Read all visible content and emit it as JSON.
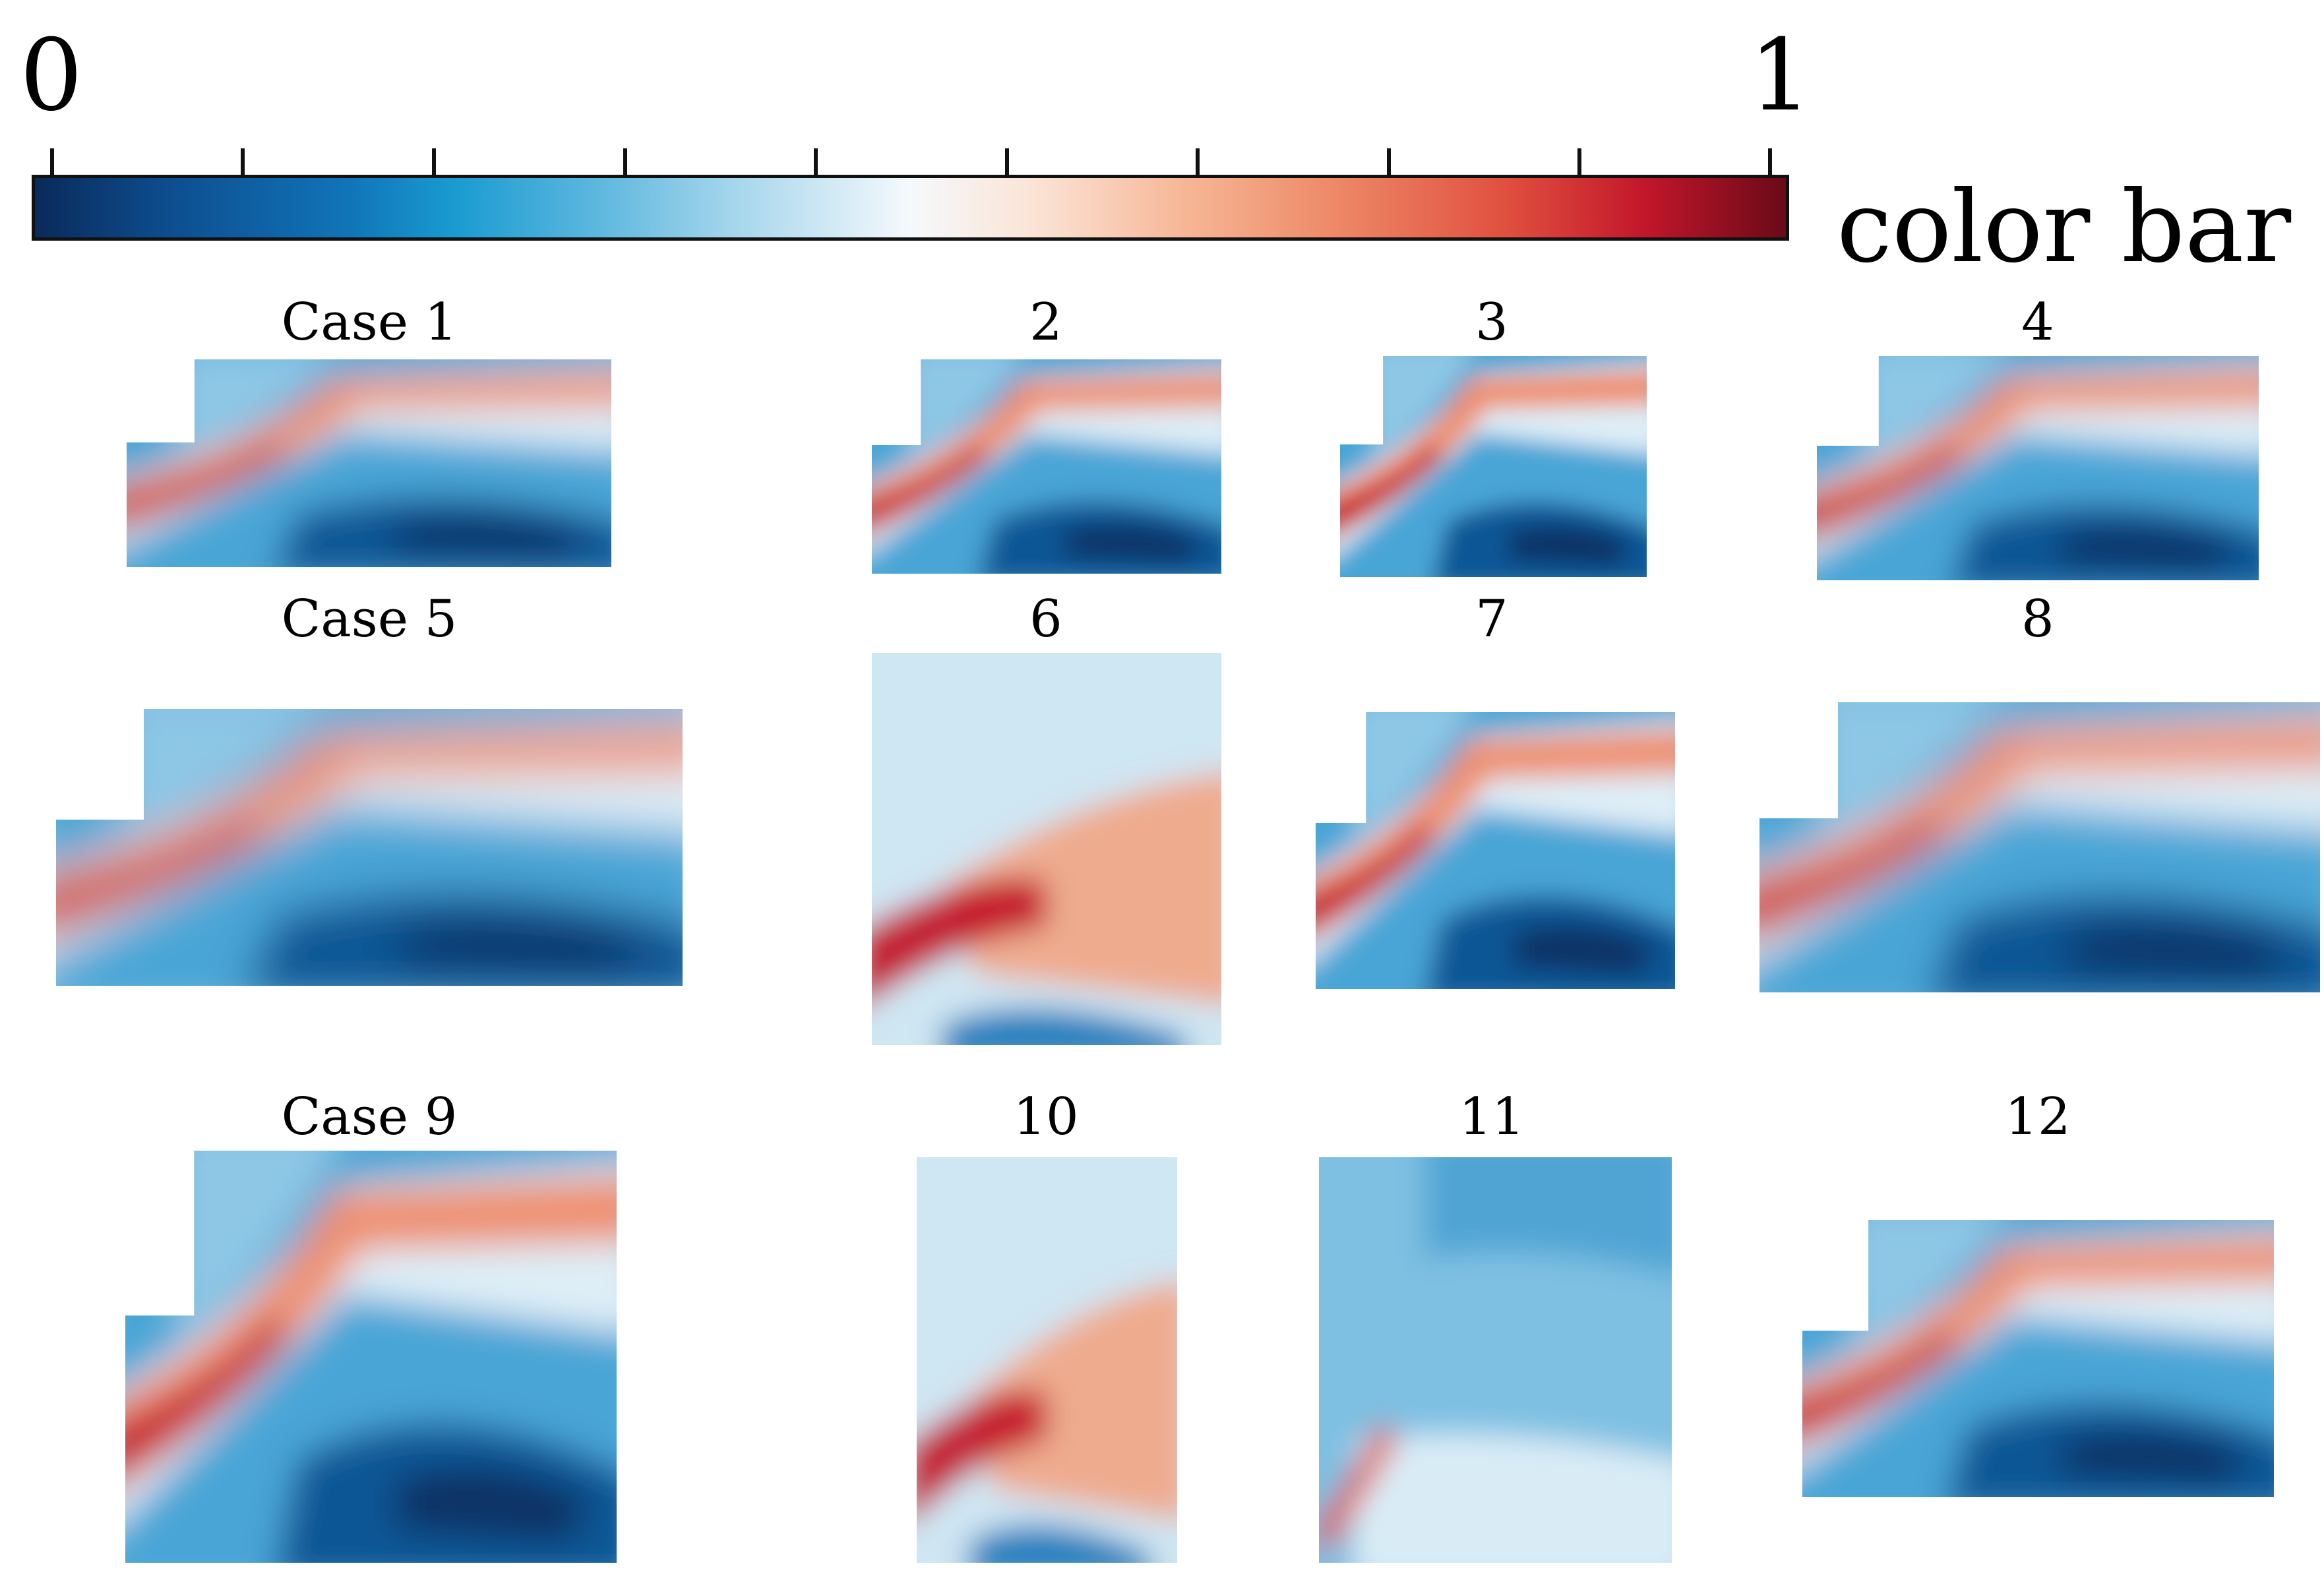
{
  "color_bar": {
    "min_label": "0",
    "max_label": "1",
    "title": "color bar",
    "colors": [
      "#0a2a5a",
      "#1075b8",
      "#5cb7de",
      "#f5f9fc",
      "#f6b594",
      "#e0503f",
      "#6a0a18"
    ]
  },
  "cases": [
    {
      "id": "case-1",
      "label": "Case 1"
    },
    {
      "id": "case-2",
      "label": "2"
    },
    {
      "id": "case-3",
      "label": "3"
    },
    {
      "id": "case-4",
      "label": "4"
    },
    {
      "id": "case-5",
      "label": "Case 5"
    },
    {
      "id": "case-6",
      "label": "6"
    },
    {
      "id": "case-7",
      "label": "7"
    },
    {
      "id": "case-8",
      "label": "8"
    },
    {
      "id": "case-9",
      "label": "Case 9"
    },
    {
      "id": "case-10",
      "label": "10"
    },
    {
      "id": "case-11",
      "label": "11"
    },
    {
      "id": "case-12",
      "label": "12"
    }
  ]
}
